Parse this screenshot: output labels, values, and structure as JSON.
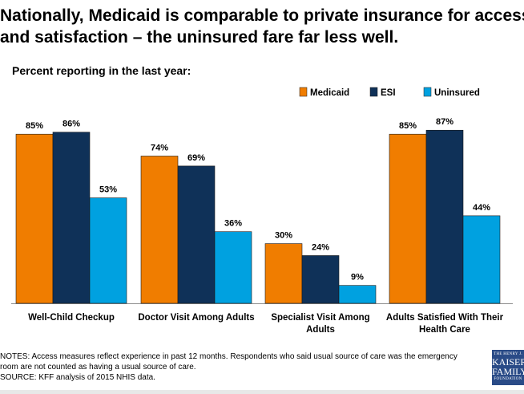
{
  "title_lines": [
    "Nationally, Medicaid is comparable to private insurance for access",
    "and satisfaction – the uninsured fare far less well."
  ],
  "notes_lines": [
    "NOTES: Access measures reflect experience in past 12 months.  Respondents  who said usual source of care was the emergency",
    "room are not counted as having a usual source of care.",
    "SOURCE: KFF analysis of 2015 NHIS  data."
  ],
  "logo": {
    "line1": "THE HENRY J.",
    "line2": "KAISER",
    "line3": "FAMILY",
    "line4": "FOUNDATION"
  },
  "chart_data": {
    "type": "bar",
    "title": "",
    "subtitle": "Percent reporting in the last year:",
    "categories": [
      [
        "Well-Child Checkup"
      ],
      [
        "Doctor Visit Among Adults"
      ],
      [
        "Specialist Visit Among",
        "Adults"
      ],
      [
        "Adults Satisfied With Their",
        "Health Care"
      ]
    ],
    "series": [
      {
        "name": "Medicaid",
        "color": "#f07d00",
        "values": [
          85,
          74,
          30,
          85
        ],
        "labels": [
          "85%",
          "74%",
          "30%",
          "85%"
        ]
      },
      {
        "name": "ESI",
        "color": "#0f3158",
        "values": [
          86,
          69,
          24,
          87
        ],
        "labels": [
          "86%",
          "69%",
          "24%",
          "87%"
        ]
      },
      {
        "name": "Uninsured",
        "color": "#00a1e0",
        "values": [
          53,
          36,
          9,
          44
        ],
        "labels": [
          "53%",
          "36%",
          "9%",
          "44%"
        ]
      }
    ],
    "ylim": [
      0,
      100
    ],
    "grid": false,
    "legend_position": "top-right",
    "xlabel": "",
    "ylabel": ""
  }
}
